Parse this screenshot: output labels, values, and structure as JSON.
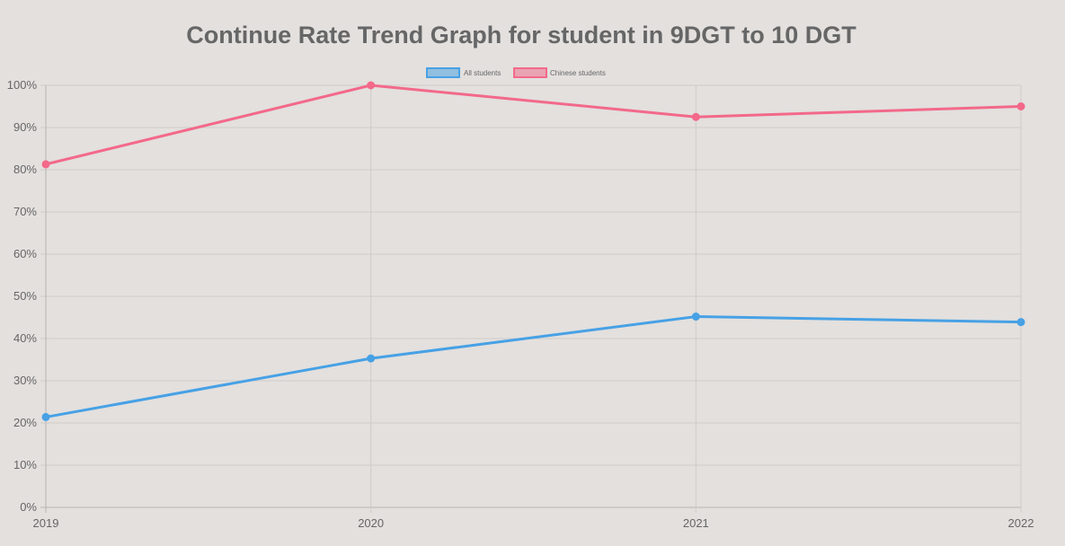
{
  "chart_data": {
    "type": "line",
    "title": "Continue Rate Trend Graph for student in 9DGT to 10 DGT",
    "x": [
      "2019",
      "2020",
      "2021",
      "2022"
    ],
    "ylim": [
      0,
      100
    ],
    "yticks": [
      0,
      10,
      20,
      30,
      40,
      50,
      60,
      70,
      80,
      90,
      100
    ],
    "ytick_labels": [
      "0%",
      "10%",
      "20%",
      "30%",
      "40%",
      "50%",
      "60%",
      "70%",
      "80%",
      "90%",
      "100%"
    ],
    "grid": true,
    "legend_position": "top",
    "series": [
      {
        "name": "All students",
        "color": "#47a1e5",
        "fill": "#92bfe0",
        "values": [
          21.4,
          35.3,
          45.2,
          43.9
        ]
      },
      {
        "name": "Chinese students",
        "color": "#f3698a",
        "fill": "#e9a3b2",
        "values": [
          81.3,
          100,
          92.5,
          95.0
        ]
      }
    ]
  }
}
